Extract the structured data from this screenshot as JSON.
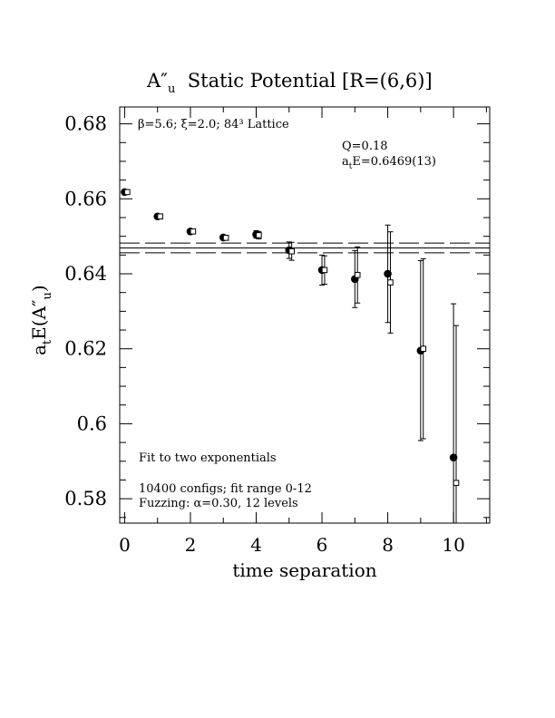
{
  "chart_data": {
    "type": "scatter",
    "title_main": "A″",
    "title_sub": "u",
    "title_rest": "  Static Potential [R=(6,6)]",
    "xlabel": "time separation",
    "ylabel_main": "a",
    "ylabel_sub1": "t",
    "ylabel_mid": "E(A″",
    "ylabel_sub2": "u",
    "ylabel_end": ")",
    "xlim": [
      -0.15,
      11.1
    ],
    "ylim": [
      0.5735,
      0.6845
    ],
    "x_ticks": [
      0,
      2,
      4,
      6,
      8,
      10
    ],
    "x_tick_labels": [
      "0",
      "2",
      "4",
      "6",
      "8",
      "10"
    ],
    "y_ticks": [
      0.58,
      0.6,
      0.62,
      0.64,
      0.66,
      0.68
    ],
    "y_tick_labels": [
      "0.58",
      "0.6",
      "0.62",
      "0.64",
      "0.66",
      "0.68"
    ],
    "annotation_lattice": "β=5.6; ξ=2.0; 84³ Lattice",
    "annotation_q": "Q=0.18",
    "annotation_fit_main": "a",
    "annotation_fit_sub": "t",
    "annotation_fit_rest": "E=0.6469(13)",
    "notes": [
      "Fit to two exponentials",
      "10400 configs; fit range 0-12",
      "Fuzzing: α=0.30, 12 levels"
    ],
    "fit": {
      "value": 0.6469,
      "error": 0.0013
    },
    "series": [
      {
        "marker": "filled-circle",
        "points": [
          {
            "x": 0,
            "y": 0.6618,
            "err": 0.0003
          },
          {
            "x": 1,
            "y": 0.6553,
            "err": 0.0004
          },
          {
            "x": 2,
            "y": 0.6513,
            "err": 0.0005
          },
          {
            "x": 3,
            "y": 0.6497,
            "err": 0.0006
          },
          {
            "x": 4,
            "y": 0.6505,
            "err": 0.001
          },
          {
            "x": 5,
            "y": 0.6463,
            "err": 0.0022
          },
          {
            "x": 6,
            "y": 0.641,
            "err": 0.004
          },
          {
            "x": 7,
            "y": 0.6386,
            "err": 0.0076
          },
          {
            "x": 8,
            "y": 0.64,
            "err": 0.013
          },
          {
            "x": 9,
            "y": 0.6195,
            "err": 0.024
          },
          {
            "x": 10,
            "y": 0.591,
            "err": 0.041
          }
        ]
      },
      {
        "marker": "open-square",
        "points": [
          {
            "x": 0.08,
            "y": 0.6618,
            "err": 0.0003
          },
          {
            "x": 1.08,
            "y": 0.6553,
            "err": 0.0004
          },
          {
            "x": 2.08,
            "y": 0.6513,
            "err": 0.0005
          },
          {
            "x": 3.08,
            "y": 0.6496,
            "err": 0.0006
          },
          {
            "x": 4.08,
            "y": 0.6503,
            "err": 0.001
          },
          {
            "x": 5.08,
            "y": 0.646,
            "err": 0.0024
          },
          {
            "x": 6.08,
            "y": 0.641,
            "err": 0.0038
          },
          {
            "x": 7.08,
            "y": 0.6397,
            "err": 0.0075
          },
          {
            "x": 8.08,
            "y": 0.6377,
            "err": 0.0135
          },
          {
            "x": 9.08,
            "y": 0.62,
            "err": 0.024
          },
          {
            "x": 10.08,
            "y": 0.5842,
            "err": 0.042
          }
        ]
      }
    ],
    "grid": false
  }
}
